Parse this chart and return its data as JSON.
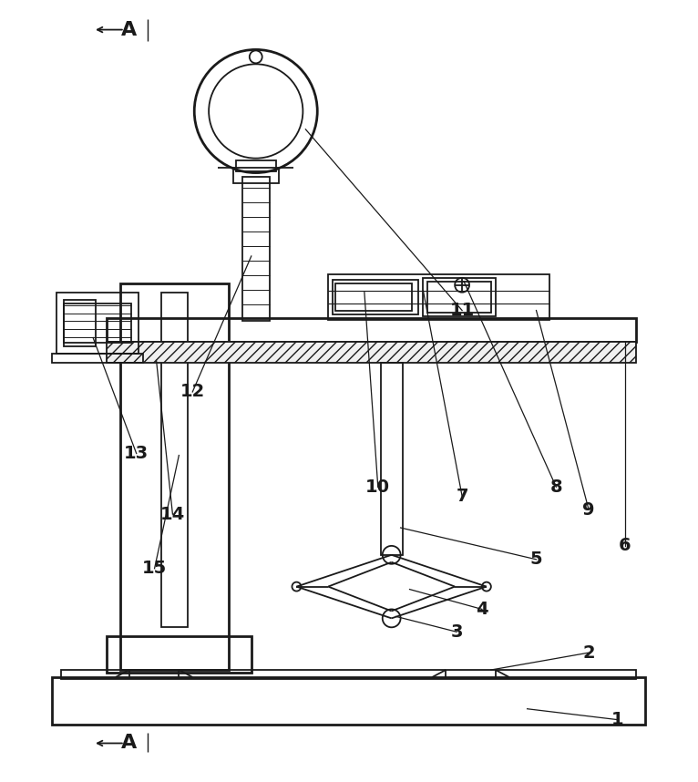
{
  "bg_color": "#ffffff",
  "line_color": "#1a1a1a",
  "lw": 1.3,
  "tlw": 2.0,
  "fig_w": 7.66,
  "fig_h": 8.58
}
